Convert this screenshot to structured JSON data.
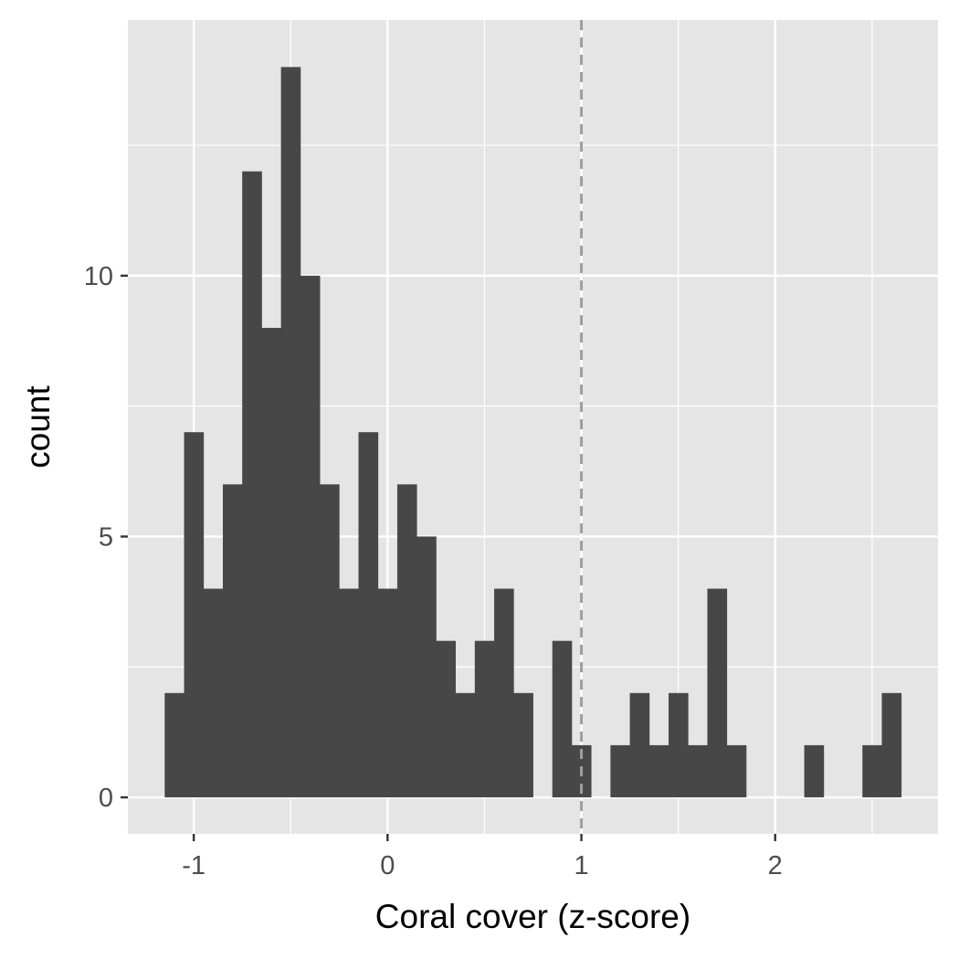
{
  "chart_data": {
    "type": "bar",
    "title": "",
    "xlabel": "Coral cover (z-score)",
    "ylabel": "count",
    "xlim": [
      -1.34,
      2.84
    ],
    "ylim": [
      -0.7,
      14.9
    ],
    "xticks": [
      -1,
      0,
      1,
      2
    ],
    "yticks": [
      0,
      5,
      10
    ],
    "xtick_labels": [
      "-1",
      "0",
      "1",
      "2"
    ],
    "ytick_labels": [
      "0",
      "5",
      "10"
    ],
    "bin_width": 0.1,
    "bins": [
      {
        "x": -1.1,
        "count": 2
      },
      {
        "x": -1.0,
        "count": 7
      },
      {
        "x": -0.9,
        "count": 4
      },
      {
        "x": -0.8,
        "count": 6
      },
      {
        "x": -0.7,
        "count": 12
      },
      {
        "x": -0.6,
        "count": 9
      },
      {
        "x": -0.5,
        "count": 14
      },
      {
        "x": -0.4,
        "count": 10
      },
      {
        "x": -0.3,
        "count": 6
      },
      {
        "x": -0.2,
        "count": 4
      },
      {
        "x": -0.1,
        "count": 7
      },
      {
        "x": 0.0,
        "count": 4
      },
      {
        "x": 0.1,
        "count": 6
      },
      {
        "x": 0.2,
        "count": 5
      },
      {
        "x": 0.3,
        "count": 3
      },
      {
        "x": 0.4,
        "count": 2
      },
      {
        "x": 0.5,
        "count": 3
      },
      {
        "x": 0.6,
        "count": 4
      },
      {
        "x": 0.7,
        "count": 2
      },
      {
        "x": 0.8,
        "count": 0
      },
      {
        "x": 0.9,
        "count": 3
      },
      {
        "x": 1.0,
        "count": 1
      },
      {
        "x": 1.1,
        "count": 0
      },
      {
        "x": 1.2,
        "count": 1
      },
      {
        "x": 1.3,
        "count": 2
      },
      {
        "x": 1.4,
        "count": 1
      },
      {
        "x": 1.5,
        "count": 2
      },
      {
        "x": 1.6,
        "count": 1
      },
      {
        "x": 1.7,
        "count": 4
      },
      {
        "x": 1.8,
        "count": 1
      },
      {
        "x": 1.9,
        "count": 0
      },
      {
        "x": 2.0,
        "count": 0
      },
      {
        "x": 2.1,
        "count": 0
      },
      {
        "x": 2.2,
        "count": 1
      },
      {
        "x": 2.3,
        "count": 0
      },
      {
        "x": 2.4,
        "count": 0
      },
      {
        "x": 2.5,
        "count": 1
      },
      {
        "x": 2.6,
        "count": 2
      }
    ],
    "reference_line": {
      "x": 1,
      "style": "dashed",
      "color": "#9e9e9e"
    },
    "bar_color": "#474747",
    "panel_color": "#e5e5e5",
    "grid": true,
    "legend": "none"
  }
}
